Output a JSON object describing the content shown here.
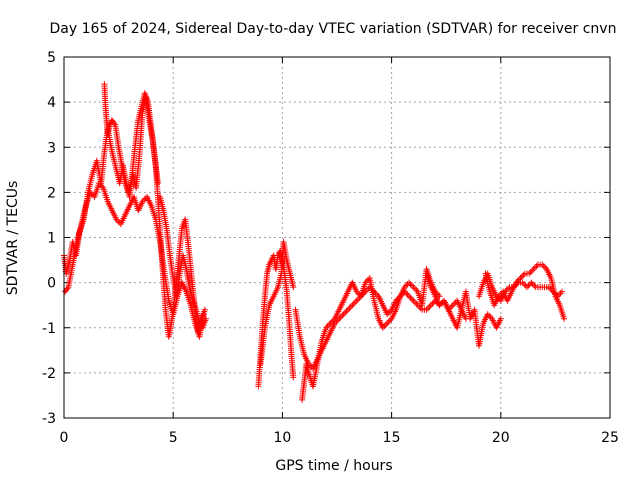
{
  "chart_data": {
    "type": "scatter",
    "title": "Day 165 of 2024, Sidereal Day-to-day VTEC variation (SDTVAR) for receiver cnvn",
    "xlabel": "GPS time / hours",
    "ylabel": "SDTVAR / TECUs",
    "xlim": [
      0,
      25
    ],
    "ylim": [
      -3,
      5
    ],
    "xticks": [
      "0",
      "5",
      "10",
      "15",
      "20",
      "25"
    ],
    "yticks": [
      "-3",
      "-2",
      "-1",
      "0",
      "1",
      "2",
      "3",
      "4",
      "5"
    ],
    "grid": true,
    "marker": "+",
    "series": [
      {
        "name": "SDTVAR",
        "color": "#ff0000",
        "segments": [
          {
            "x": [
              0.0,
              0.1,
              0.25,
              0.4,
              0.55,
              0.7,
              0.9,
              1.1,
              1.3,
              1.5,
              1.7,
              1.85,
              2.0,
              2.2,
              2.4,
              2.55,
              2.7,
              2.85,
              3.0,
              3.15,
              3.3,
              3.45,
              3.6,
              3.75,
              3.9,
              4.05,
              4.2,
              4.35,
              4.5,
              4.65,
              4.8,
              4.95,
              5.1,
              5.25,
              5.4,
              5.55,
              5.7,
              5.85,
              6.0,
              6.15,
              6.3,
              6.45
            ],
            "y": [
              0.6,
              0.2,
              0.5,
              0.9,
              0.6,
              1.1,
              1.4,
              2.0,
              2.4,
              2.7,
              2.2,
              2.9,
              3.4,
              2.9,
              2.5,
              2.2,
              2.6,
              2.2,
              1.9,
              2.4,
              2.1,
              2.8,
              3.8,
              4.1,
              3.6,
              3.2,
              2.6,
              1.5,
              0.4,
              -0.6,
              -1.2,
              -0.8,
              -0.2,
              0.5,
              1.2,
              1.4,
              0.8,
              0.1,
              -0.6,
              -1.1,
              -0.8,
              -0.6
            ]
          },
          {
            "x": [
              0.05,
              0.2,
              0.4,
              0.6,
              0.8,
              1.0,
              1.2,
              1.4,
              1.6,
              1.8,
              2.0,
              2.2,
              2.4,
              2.6,
              2.8,
              3.0,
              3.2,
              3.4,
              3.6,
              3.8,
              4.0,
              4.2,
              4.4,
              4.6,
              4.8,
              5.0,
              5.2,
              5.4,
              5.6,
              5.8,
              6.0,
              6.2,
              6.4
            ],
            "y": [
              -0.2,
              -0.1,
              0.4,
              0.9,
              1.3,
              1.7,
              2.0,
              1.9,
              2.2,
              2.1,
              1.8,
              1.6,
              1.4,
              1.3,
              1.5,
              1.7,
              1.9,
              1.6,
              1.8,
              1.9,
              1.7,
              1.4,
              0.9,
              0.2,
              -0.4,
              -0.7,
              -0.3,
              0.0,
              -0.2,
              -0.5,
              -0.9,
              -1.2,
              -0.7
            ]
          },
          {
            "x": [
              1.85,
              1.9,
              1.95,
              2.0,
              2.1,
              2.2,
              2.35,
              2.5,
              2.65,
              2.8,
              2.95,
              3.1,
              3.25,
              3.4,
              3.55,
              3.7,
              3.85,
              4.0,
              4.15,
              4.3
            ],
            "y": [
              4.4,
              3.9,
              3.6,
              3.3,
              3.5,
              3.6,
              3.5,
              3.0,
              2.6,
              2.2,
              2.0,
              2.3,
              3.0,
              3.6,
              3.9,
              4.2,
              4.0,
              3.4,
              2.8,
              2.2
            ]
          },
          {
            "x": [
              4.4,
              4.55,
              4.7,
              4.85,
              5.0,
              5.15,
              5.3,
              5.45,
              5.6,
              5.75,
              5.9,
              6.05,
              6.2,
              6.35,
              6.5
            ],
            "y": [
              1.9,
              1.6,
              1.2,
              0.6,
              0.1,
              -0.3,
              0.2,
              0.6,
              0.3,
              -0.1,
              -0.4,
              -0.6,
              -0.9,
              -1.0,
              -0.8
            ]
          },
          {
            "x": [
              8.9,
              9.0,
              9.1,
              9.2,
              9.3,
              9.4,
              9.5,
              9.6,
              9.7,
              9.8,
              9.9,
              10.0,
              10.1,
              10.2,
              10.3,
              10.4,
              10.5
            ],
            "y": [
              -2.3,
              -1.6,
              -0.9,
              -0.3,
              0.2,
              0.4,
              0.5,
              0.6,
              0.3,
              0.6,
              0.7,
              0.5,
              0.2,
              -0.2,
              -0.8,
              -1.5,
              -2.1
            ]
          },
          {
            "x": [
              9.0,
              9.2,
              9.4,
              9.6,
              9.8,
              9.95,
              10.05,
              10.2,
              10.35,
              10.5
            ],
            "y": [
              -1.8,
              -1.0,
              -0.5,
              -0.3,
              -0.1,
              0.2,
              0.9,
              0.5,
              0.2,
              -0.1
            ]
          },
          {
            "x": [
              10.6,
              10.8,
              11.0,
              11.2,
              11.4,
              11.6,
              11.8,
              12.0,
              12.2,
              12.4,
              12.6,
              12.8,
              13.0,
              13.2,
              13.4,
              13.6,
              13.8,
              14.0,
              14.2,
              14.4,
              14.6,
              14.8,
              15.0,
              15.2,
              15.4,
              15.6,
              15.8,
              16.0,
              16.2,
              16.4,
              16.6,
              16.8,
              17.0,
              17.2,
              17.4,
              17.6,
              17.8,
              18.0,
              18.2,
              18.4
            ],
            "y": [
              -0.6,
              -1.2,
              -1.6,
              -1.8,
              -1.9,
              -1.7,
              -1.5,
              -1.3,
              -1.1,
              -0.9,
              -0.8,
              -0.7,
              -0.6,
              -0.5,
              -0.4,
              -0.3,
              -0.2,
              -0.1,
              -0.2,
              -0.3,
              -0.5,
              -0.7,
              -0.6,
              -0.4,
              -0.3,
              -0.2,
              -0.3,
              -0.4,
              -0.5,
              -0.6,
              -0.6,
              -0.5,
              -0.4,
              -0.5,
              -0.4,
              -0.6,
              -0.5,
              -0.4,
              -0.6,
              -0.8
            ]
          },
          {
            "x": [
              10.9,
              11.0,
              11.1,
              11.2,
              11.4,
              11.6,
              11.8,
              12.0,
              12.2,
              12.4,
              12.6,
              12.8,
              13.0,
              13.2,
              13.4,
              13.6,
              13.8,
              14.0,
              14.2,
              14.4,
              14.6,
              14.8,
              15.0,
              15.2,
              15.4,
              15.6,
              15.8,
              16.0,
              16.2,
              16.4,
              16.6,
              16.8,
              17.0,
              17.2
            ],
            "y": [
              -2.6,
              -2.2,
              -1.8,
              -2.0,
              -2.3,
              -1.8,
              -1.3,
              -1.0,
              -0.9,
              -0.8,
              -0.6,
              -0.4,
              -0.2,
              0.0,
              -0.2,
              -0.3,
              0.0,
              0.1,
              -0.4,
              -0.8,
              -1.0,
              -0.9,
              -0.8,
              -0.6,
              -0.3,
              -0.1,
              0.0,
              -0.1,
              -0.2,
              -0.5,
              0.3,
              0.0,
              -0.2,
              -0.3
            ]
          },
          {
            "x": [
              16.6,
              16.8,
              17.0,
              17.2,
              17.4,
              17.6,
              17.8,
              18.0,
              18.2,
              18.4,
              18.6,
              18.8,
              19.0,
              19.2,
              19.4,
              19.6,
              19.8,
              20.0
            ],
            "y": [
              0.2,
              -0.1,
              -0.3,
              -0.5,
              -0.4,
              -0.6,
              -0.8,
              -1.0,
              -0.6,
              -0.2,
              -0.8,
              -0.6,
              -1.4,
              -0.9,
              -0.7,
              -0.8,
              -1.0,
              -0.8
            ]
          },
          {
            "x": [
              19.0,
              19.2,
              19.4,
              19.6,
              19.8,
              20.0,
              20.2,
              20.4,
              20.6,
              20.8,
              21.0,
              21.2,
              21.4,
              21.6,
              21.8,
              22.0,
              22.2,
              22.4,
              22.6,
              22.8
            ],
            "y": [
              -0.3,
              0.0,
              0.2,
              -0.1,
              -0.3,
              -0.4,
              -0.2,
              -0.1,
              -0.1,
              0.0,
              0.0,
              -0.1,
              0.0,
              -0.1,
              -0.1,
              -0.1,
              -0.1,
              -0.2,
              -0.3,
              -0.2
            ]
          },
          {
            "x": [
              19.3,
              19.5,
              19.7,
              19.9,
              20.1,
              20.3,
              20.5,
              20.7,
              20.9,
              21.1,
              21.3,
              21.5,
              21.7,
              21.9,
              22.1,
              22.3,
              22.5,
              22.7,
              22.9
            ],
            "y": [
              0.2,
              -0.2,
              -0.5,
              -0.3,
              -0.2,
              -0.4,
              -0.2,
              0.0,
              0.1,
              0.2,
              0.2,
              0.3,
              0.4,
              0.4,
              0.3,
              0.1,
              -0.3,
              -0.5,
              -0.8
            ]
          }
        ]
      }
    ]
  }
}
